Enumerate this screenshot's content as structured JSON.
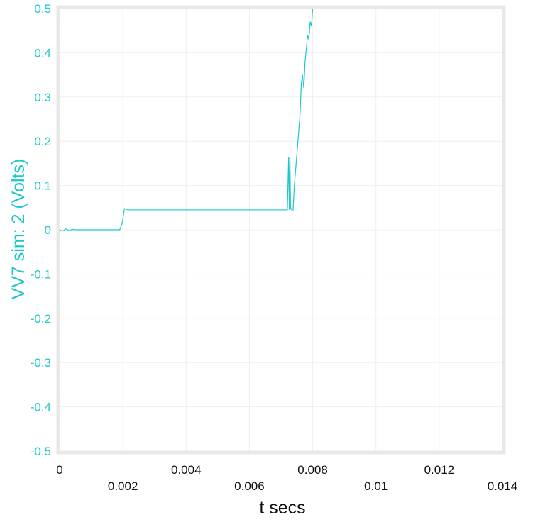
{
  "chart_data": {
    "type": "line",
    "xlabel": "t secs",
    "ylabel": "VV7 sim:  2 (Volts)",
    "xlim": [
      0,
      0.014
    ],
    "ylim": [
      -0.5,
      0.5
    ],
    "grid": true,
    "x_ticks": [
      {
        "value": 0,
        "label": "0"
      },
      {
        "value": 0.002,
        "label": "0.002"
      },
      {
        "value": 0.004,
        "label": "0.004"
      },
      {
        "value": 0.006,
        "label": "0.006"
      },
      {
        "value": 0.008,
        "label": "0.008"
      },
      {
        "value": 0.01,
        "label": "0.01"
      },
      {
        "value": 0.012,
        "label": "0.012"
      },
      {
        "value": 0.014,
        "label": "0.014"
      }
    ],
    "y_ticks": [
      {
        "value": 0.5,
        "label": "0.5"
      },
      {
        "value": 0.4,
        "label": "0.4"
      },
      {
        "value": 0.3,
        "label": "0.3"
      },
      {
        "value": 0.2,
        "label": "0.2"
      },
      {
        "value": 0.1,
        "label": "0.1"
      },
      {
        "value": 0,
        "label": "0"
      },
      {
        "value": -0.1,
        "label": "-0.1"
      },
      {
        "value": -0.2,
        "label": "-0.2"
      },
      {
        "value": -0.3,
        "label": "-0.3"
      },
      {
        "value": -0.4,
        "label": "-0.4"
      },
      {
        "value": -0.5,
        "label": "-0.5"
      }
    ],
    "series": [
      {
        "color": "#1ec8c8",
        "x": [
          0,
          0.0001,
          0.0002,
          0.0003,
          0.0004,
          0.0005,
          0.0019,
          0.00198,
          0.00205,
          0.00212,
          0.00218,
          0.0025,
          0.004,
          0.0055,
          0.0072,
          0.00724,
          0.00726,
          0.00728,
          0.0073,
          0.00734,
          0.00738,
          0.00742,
          0.0075,
          0.0076,
          0.00764,
          0.00768,
          0.00772,
          0.00776,
          0.0078,
          0.00784,
          0.00788,
          0.00792,
          0.00796,
          0.008
        ],
        "y": [
          0,
          -0.003,
          0.002,
          -0.002,
          0.001,
          0,
          0,
          0.015,
          0.048,
          0.046,
          0.045,
          0.045,
          0.045,
          0.045,
          0.045,
          0.165,
          0.045,
          0.165,
          0.05,
          0.045,
          0.045,
          0.1,
          0.17,
          0.26,
          0.33,
          0.35,
          0.32,
          0.38,
          0.41,
          0.44,
          0.43,
          0.47,
          0.46,
          0.5
        ]
      }
    ]
  }
}
